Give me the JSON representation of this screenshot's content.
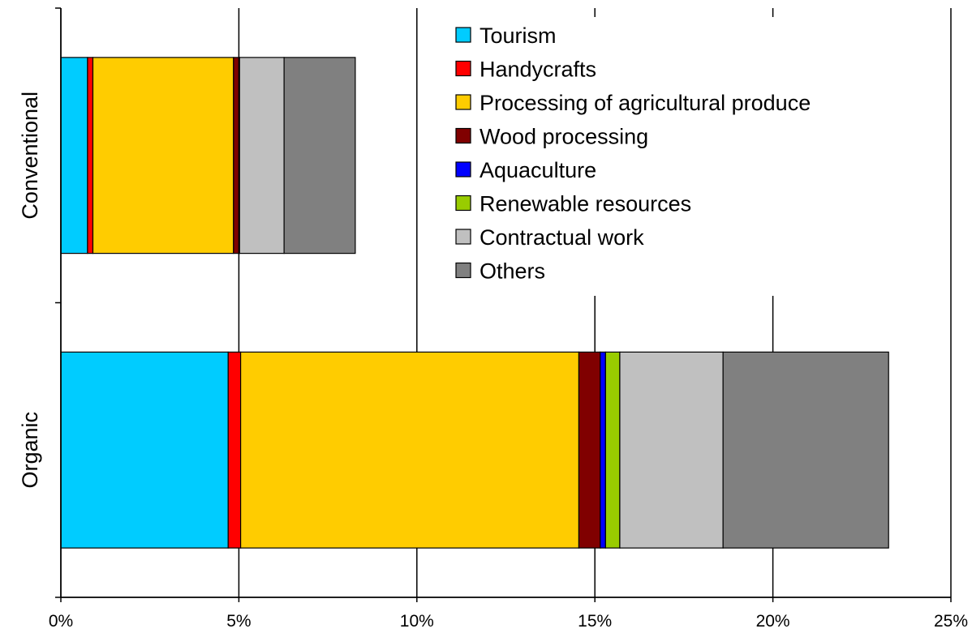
{
  "chart_data": {
    "type": "bar",
    "orientation": "horizontal",
    "stacked": true,
    "categories": [
      "Conventional",
      "Organic"
    ],
    "series": [
      {
        "name": "Tourism",
        "color": "#00CCFF",
        "values": [
          0.75,
          4.7
        ]
      },
      {
        "name": "Handycrafts",
        "color": "#FF0000",
        "values": [
          0.15,
          0.35
        ]
      },
      {
        "name": "Processing of agricultural produce",
        "color": "#FFCC00",
        "values": [
          3.95,
          9.5
        ]
      },
      {
        "name": "Wood processing",
        "color": "#800000",
        "values": [
          0.15,
          0.6
        ]
      },
      {
        "name": "Aquaculture",
        "color": "#0000FF",
        "values": [
          0.02,
          0.15
        ]
      },
      {
        "name": "Renewable resources",
        "color": "#99CC00",
        "values": [
          0.0,
          0.4
        ]
      },
      {
        "name": "Contractual work",
        "color": "#C0C0C0",
        "values": [
          1.25,
          2.9
        ]
      },
      {
        "name": "Others",
        "color": "#808080",
        "values": [
          2.0,
          4.65
        ]
      }
    ],
    "xlim": [
      0,
      25
    ],
    "x_ticks": [
      "0%",
      "5%",
      "10%",
      "15%",
      "20%",
      "25%"
    ],
    "x_grid": true,
    "legend_position": "top-right",
    "title": "",
    "xlabel": "",
    "ylabel": ""
  }
}
